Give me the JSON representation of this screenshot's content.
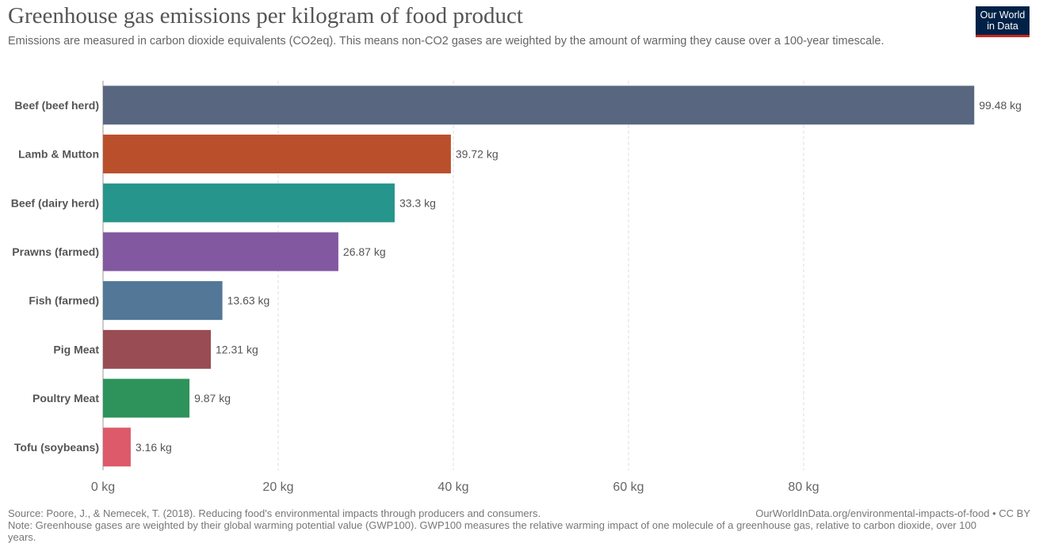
{
  "title": "Greenhouse gas emissions per kilogram of food product",
  "subtitle": "Emissions are measured in carbon dioxide equivalents (CO2eq). This means non-CO2 gases are weighted by the amount of warming they cause over a 100-year timescale.",
  "logo": {
    "line1": "Our World",
    "line2": "in Data",
    "bg_color": "#002147",
    "accent_color": "#ce261e"
  },
  "footer": {
    "source": "Source: Poore, J., & Nemecek, T. (2018). Reducing food's environmental impacts through producers and consumers.",
    "url": "OurWorldInData.org/environmental-impacts-of-food • CC BY",
    "note": "Note: Greenhouse gases are weighted by their global warming potential value (GWP100). GWP100 measures the relative warming impact of one molecule of a greenhouse gas, relative to carbon dioxide, over 100 years."
  },
  "chart_data": {
    "type": "bar",
    "orientation": "horizontal",
    "categories": [
      "Beef (beef herd)",
      "Lamb & Mutton",
      "Beef (dairy herd)",
      "Prawns (farmed)",
      "Fish (farmed)",
      "Pig Meat",
      "Poultry Meat",
      "Tofu (soybeans)"
    ],
    "values": [
      99.48,
      39.72,
      33.3,
      26.87,
      13.63,
      12.31,
      9.87,
      3.16
    ],
    "value_labels": [
      "99.48 kg",
      "39.72 kg",
      "33.3 kg",
      "26.87 kg",
      "13.63 kg",
      "12.31 kg",
      "9.87 kg",
      "3.16 kg"
    ],
    "colors": [
      "#58677f",
      "#b9502b",
      "#26958c",
      "#8258a0",
      "#527797",
      "#994c53",
      "#2d935b",
      "#dc5a6a"
    ],
    "xlim": [
      0,
      100
    ],
    "xticks": [
      0,
      20,
      40,
      60,
      80
    ],
    "xtick_labels": [
      "0 kg",
      "20 kg",
      "40 kg",
      "60 kg",
      "80 kg"
    ],
    "grid": true
  }
}
